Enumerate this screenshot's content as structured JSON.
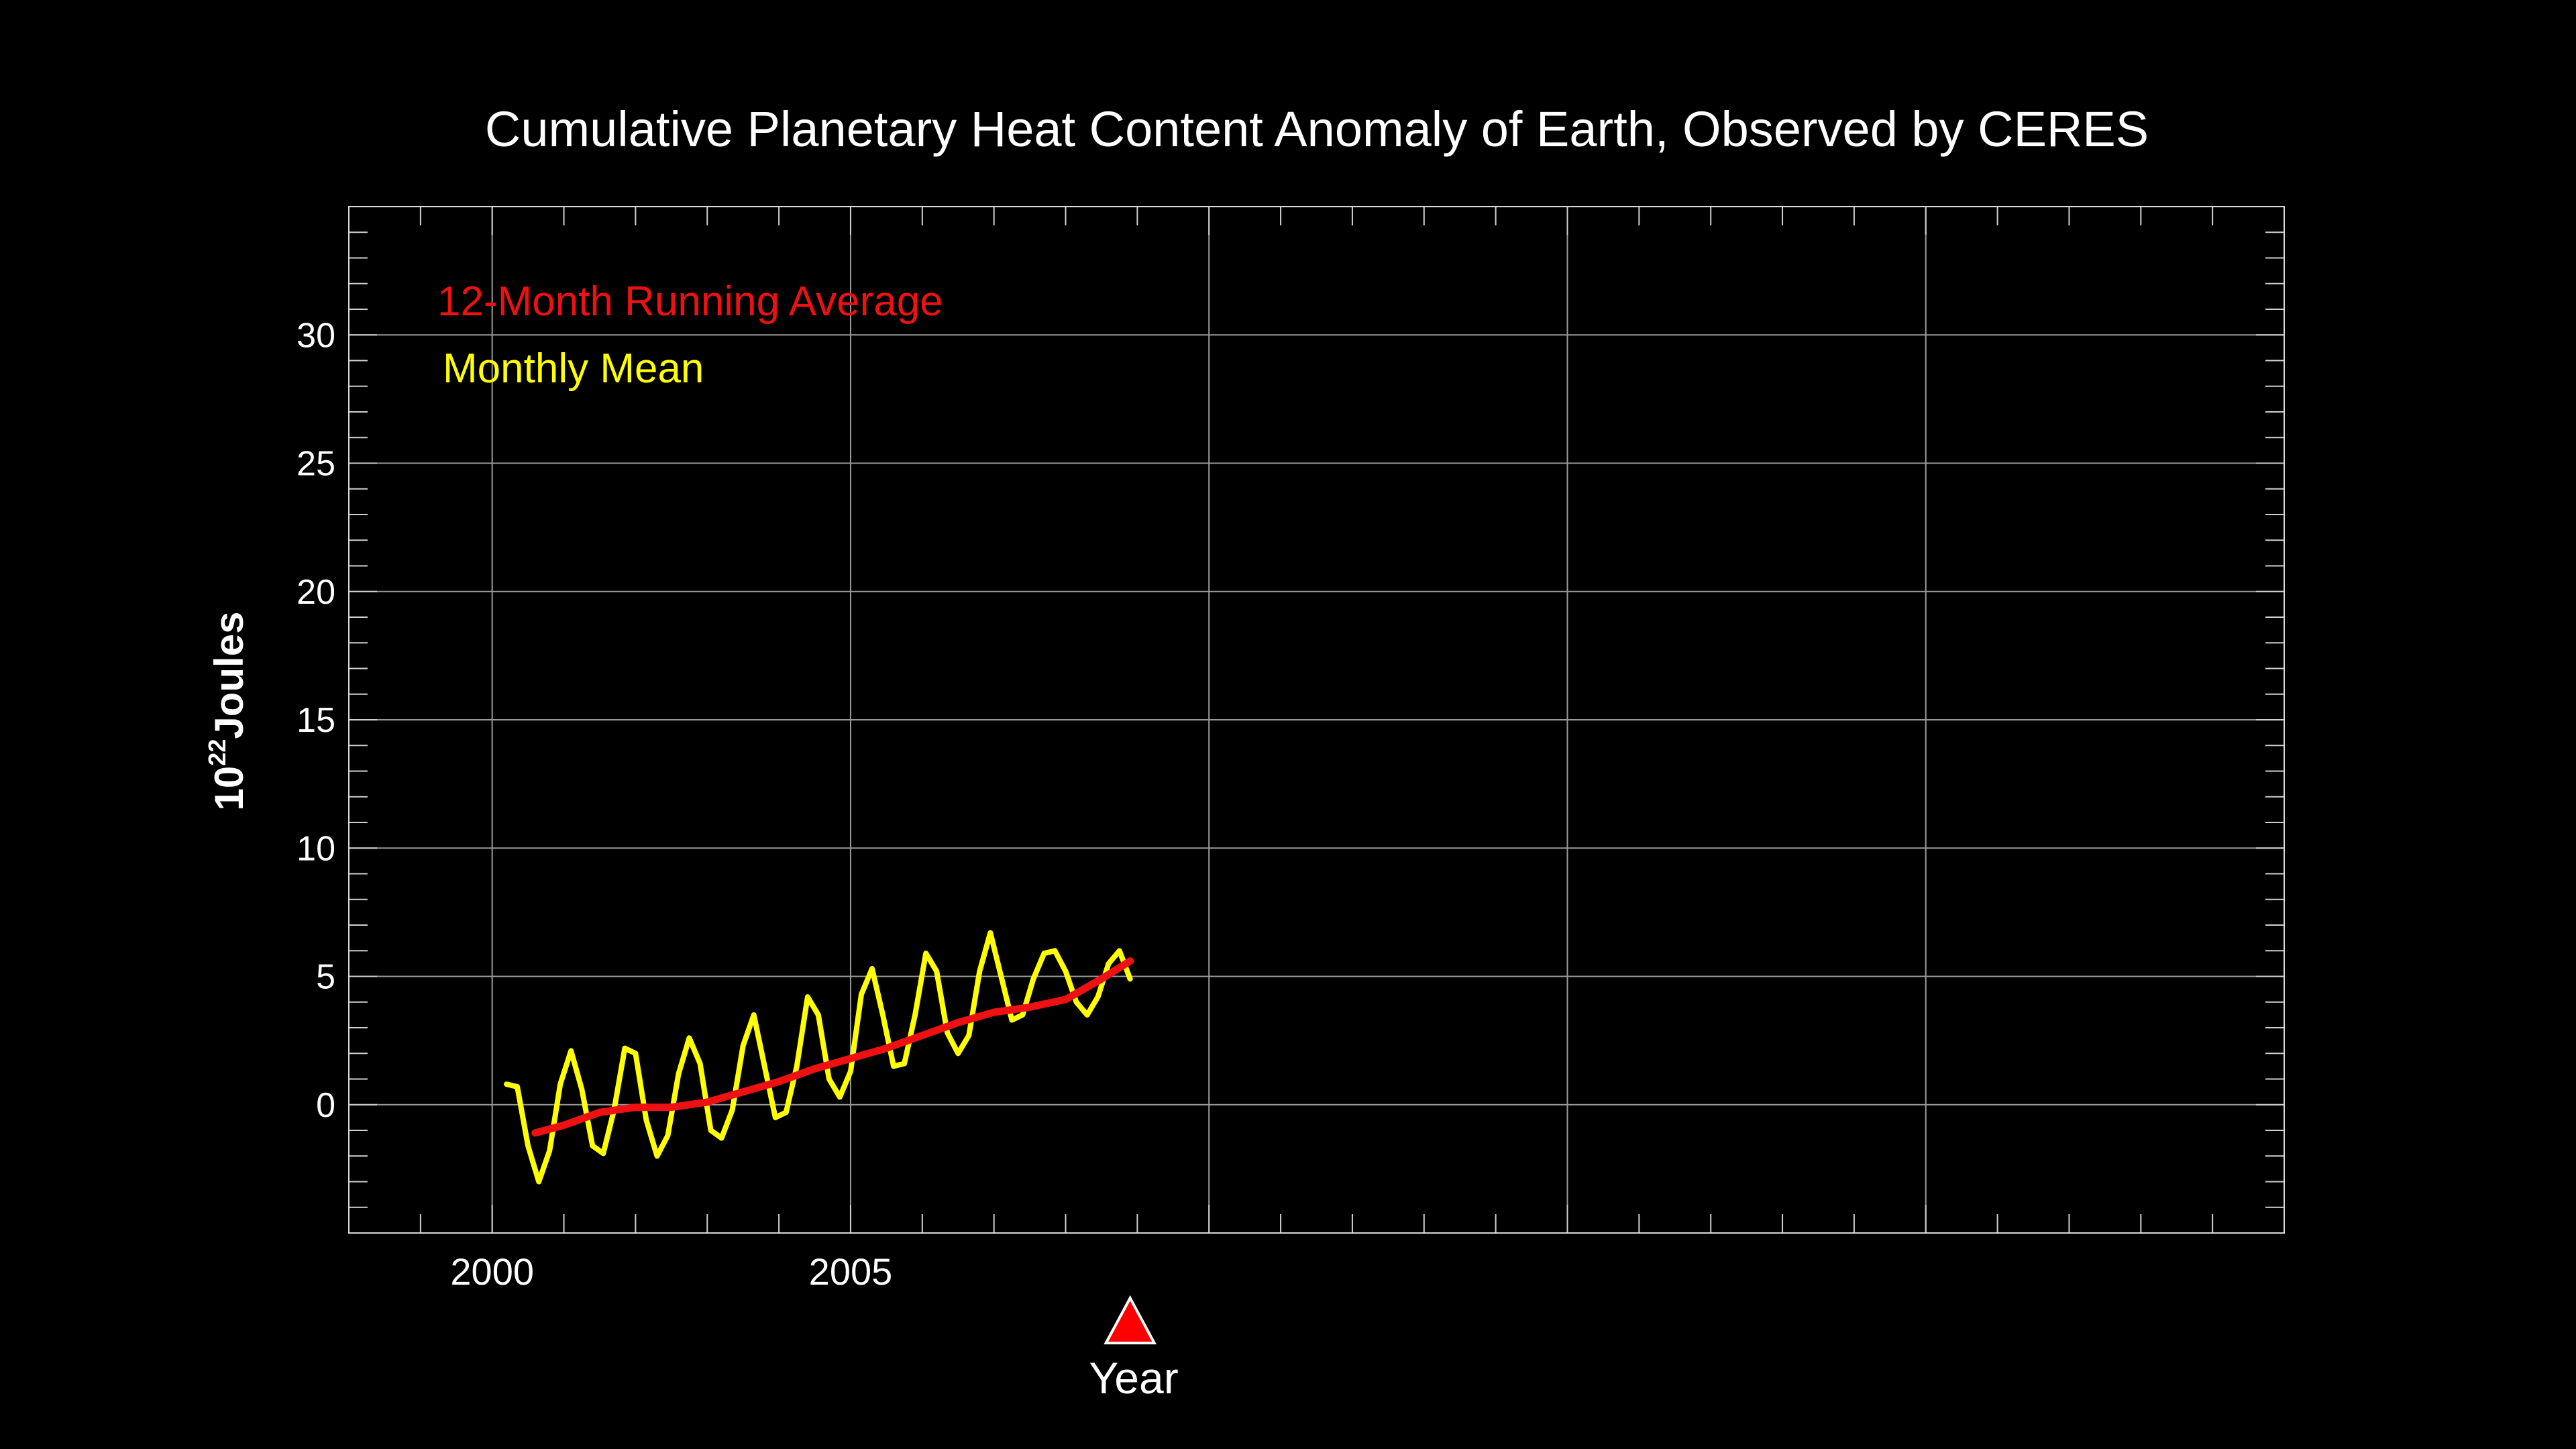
{
  "chart_data": {
    "type": "line",
    "title": "Cumulative Planetary Heat Content Anomaly of Earth, Observed by CERES",
    "xlabel": "Year",
    "ylabel": {
      "base": "10",
      "exponent": "22",
      "unit": "Joules"
    },
    "xlim": [
      1998.0,
      2025.0
    ],
    "ylim": [
      -5,
      35
    ],
    "x_major_ticks": [
      2000,
      2005,
      2010,
      2015,
      2020,
      2025
    ],
    "x_tick_labels": [
      {
        "x": 2000,
        "label": "2000"
      },
      {
        "x": 2005,
        "label": "2005"
      }
    ],
    "y_ticks": [
      0,
      5,
      10,
      15,
      20,
      25,
      30
    ],
    "y_tick_labels": [
      "0",
      "5",
      "10",
      "15",
      "20",
      "25",
      "30"
    ],
    "grid": true,
    "legend": {
      "placement": "top-left"
    },
    "current_year_marker": {
      "x": 2008.9,
      "color": "#ff0000"
    },
    "series": [
      {
        "name": "12-Month Running Average",
        "color": "#ee1111",
        "x": [
          2000.6,
          2001.0,
          2001.5,
          2002.0,
          2002.5,
          2003.0,
          2003.5,
          2004.0,
          2004.5,
          2005.0,
          2005.5,
          2006.0,
          2006.5,
          2007.0,
          2007.5,
          2008.0,
          2008.5,
          2008.9
        ],
        "y": [
          -1.1,
          -0.8,
          -0.3,
          -0.1,
          -0.1,
          0.1,
          0.5,
          0.9,
          1.4,
          1.8,
          2.2,
          2.7,
          3.2,
          3.6,
          3.8,
          4.1,
          4.9,
          5.6
        ]
      },
      {
        "name": "Monthly Mean",
        "color": "#ffff00",
        "x": [
          2000.2,
          2000.35,
          2000.5,
          2000.65,
          2000.8,
          2000.95,
          2001.1,
          2001.25,
          2001.4,
          2001.55,
          2001.7,
          2001.85,
          2002.0,
          2002.15,
          2002.3,
          2002.45,
          2002.6,
          2002.75,
          2002.9,
          2003.05,
          2003.2,
          2003.35,
          2003.5,
          2003.65,
          2003.8,
          2003.95,
          2004.1,
          2004.25,
          2004.4,
          2004.55,
          2004.7,
          2004.85,
          2005.0,
          2005.15,
          2005.3,
          2005.45,
          2005.6,
          2005.75,
          2005.9,
          2006.05,
          2006.2,
          2006.35,
          2006.5,
          2006.65,
          2006.8,
          2006.95,
          2007.1,
          2007.25,
          2007.4,
          2007.55,
          2007.7,
          2007.85,
          2008.0,
          2008.15,
          2008.3,
          2008.45,
          2008.6,
          2008.75,
          2008.9
        ],
        "y": [
          0.8,
          0.7,
          -1.6,
          -3.0,
          -1.8,
          0.8,
          2.1,
          0.6,
          -1.6,
          -1.9,
          -0.2,
          2.2,
          2.0,
          -0.6,
          -2.0,
          -1.2,
          1.2,
          2.6,
          1.6,
          -1.0,
          -1.3,
          -0.2,
          2.3,
          3.5,
          1.5,
          -0.5,
          -0.3,
          1.5,
          4.2,
          3.5,
          1.0,
          0.3,
          1.3,
          4.3,
          5.3,
          3.5,
          1.5,
          1.6,
          3.5,
          5.9,
          5.2,
          2.8,
          2.0,
          2.7,
          5.2,
          6.7,
          5.0,
          3.3,
          3.5,
          4.9,
          5.9,
          6.0,
          5.2,
          4.0,
          3.5,
          4.2,
          5.5,
          6.0,
          4.9
        ]
      }
    ]
  }
}
